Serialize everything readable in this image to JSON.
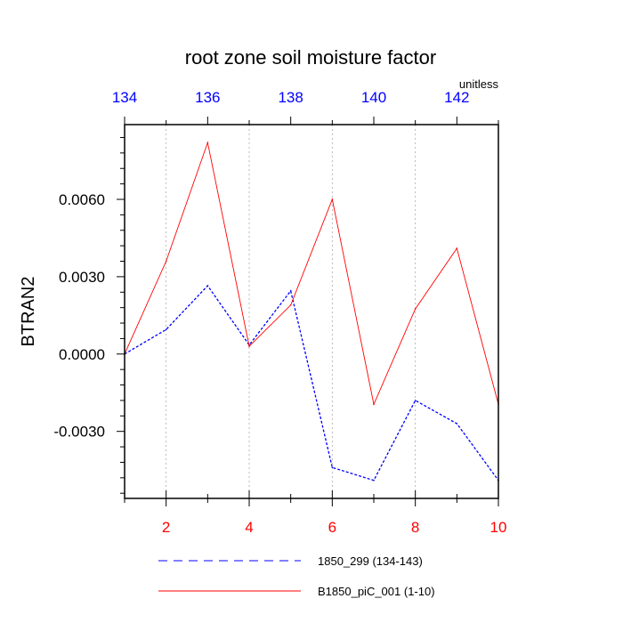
{
  "chart_data": {
    "type": "line",
    "title": "root zone soil moisture factor",
    "units": "unitless",
    "ylabel": "BTRAN2",
    "xlabel": "",
    "ylim": [
      -0.0056,
      0.0089
    ],
    "grid": "vertical dashed at bottom-axis major ticks",
    "bottom_axis": {
      "range": [
        1,
        10
      ],
      "tick_values": [
        2,
        4,
        6,
        8,
        10
      ],
      "tick_labels": [
        "2",
        "4",
        "6",
        "8",
        "10"
      ],
      "color": "#ff0000"
    },
    "top_axis": {
      "range": [
        134,
        143
      ],
      "tick_values": [
        134,
        136,
        138,
        140,
        142
      ],
      "tick_labels": [
        "134",
        "136",
        "138",
        "140",
        "142"
      ],
      "color": "#0000ff"
    },
    "left_axis": {
      "tick_values": [
        -0.003,
        0,
        0.003,
        0.006
      ],
      "tick_labels": [
        "-0.0030",
        "0.0000",
        "0.0030",
        "0.0060"
      ]
    },
    "x": [
      1,
      2,
      3,
      4,
      5,
      6,
      7,
      8,
      9,
      10
    ],
    "series": [
      {
        "name": "1850_299 (134-143)",
        "color": "#0000ff",
        "dash": "dashed",
        "values": [
          0.0,
          0.00095,
          0.00265,
          0.00035,
          0.00245,
          -0.0044,
          -0.0049,
          -0.0018,
          -0.0027,
          -0.0049
        ]
      },
      {
        "name": "B1850_piC_001 (1-10)",
        "color": "#ff0000",
        "dash": "solid",
        "values": [
          0.0,
          0.0036,
          0.0082,
          0.0003,
          0.0019,
          0.006,
          -0.00195,
          0.00175,
          0.0041,
          -0.00195
        ]
      }
    ],
    "legend_placement": "bottom"
  }
}
